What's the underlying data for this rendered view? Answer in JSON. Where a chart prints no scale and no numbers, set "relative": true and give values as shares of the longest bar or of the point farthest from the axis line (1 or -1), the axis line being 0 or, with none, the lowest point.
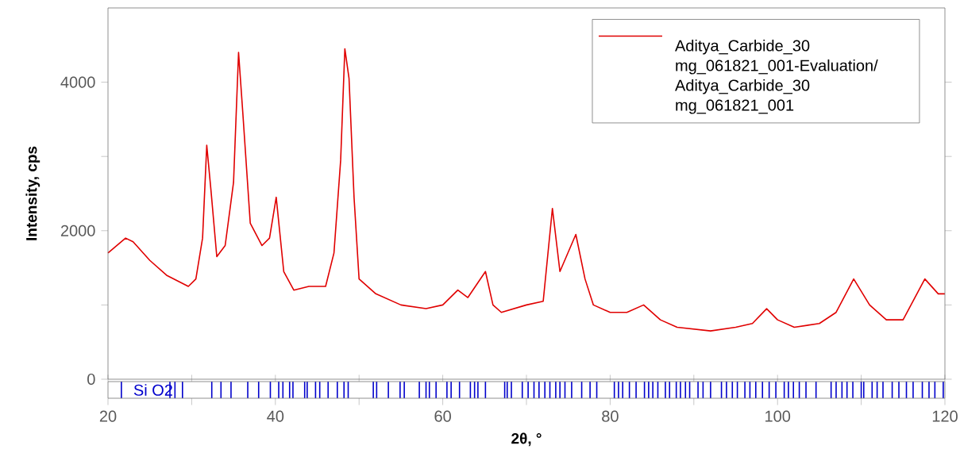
{
  "chart_data": [
    {
      "type": "line",
      "ylabel": "Intensity, cps",
      "legend": "top right",
      "marker": "none",
      "line_style": "solid",
      "grid": false,
      "tick_labels": "y",
      "x": [
        20,
        22.1,
        23,
        25,
        27,
        29.6,
        30.5,
        31.3,
        31.8,
        32.3,
        33,
        34,
        35,
        35.6,
        36.1,
        37,
        38.4,
        39.3,
        40.1,
        41,
        42.2,
        44,
        45,
        46,
        47,
        47.8,
        48.3,
        48.8,
        49.4,
        50,
        52,
        55,
        58,
        60,
        61.8,
        63,
        65.1,
        66,
        67,
        70,
        72,
        73.1,
        74,
        75.9,
        77,
        78,
        80,
        82,
        84,
        86,
        88,
        92,
        95,
        97,
        98.7,
        100,
        102,
        105,
        107,
        109.1,
        111,
        113,
        115,
        117.6,
        119.2,
        120
      ],
      "xlim": [
        20,
        120
      ],
      "ylim": [
        0,
        5000
      ],
      "yticks": [
        0,
        {
          "value": 1000,
          "label": null
        },
        2000,
        {
          "value": 3000,
          "label": null
        },
        4000
      ],
      "series": [
        {
          "name": "Aditya_Carbide_30 mg_061821_001-Evaluation/ Aditya_Carbide_30 mg_061821_001",
          "color": "#e00000",
          "values": [
            1700,
            1900,
            1850,
            1600,
            1400,
            1250,
            1350,
            1900,
            3150,
            2550,
            1650,
            1800,
            2650,
            4400,
            3600,
            2100,
            1800,
            1900,
            2450,
            1450,
            1200,
            1250,
            1250,
            1250,
            1700,
            2950,
            4450,
            4050,
            2450,
            1350,
            1150,
            1000,
            950,
            1000,
            1200,
            1100,
            1450,
            1000,
            900,
            1000,
            1050,
            2300,
            1450,
            1950,
            1350,
            1000,
            900,
            900,
            1000,
            800,
            700,
            650,
            700,
            750,
            950,
            800,
            700,
            750,
            900,
            1350,
            1000,
            800,
            800,
            1350,
            1150,
            1150
          ]
        }
      ]
    },
    {
      "type": "bar",
      "relative": true,
      "color": "#0000cc",
      "tick_labels": "x",
      "xlabel": "2θ, °",
      "annotations": [
        "Si O2"
      ],
      "xlim": [
        20,
        120
      ],
      "xticks": [
        20,
        {
          "value": 30,
          "label": null
        },
        40,
        {
          "value": 50,
          "label": null
        },
        60,
        {
          "value": 70,
          "label": null
        },
        80,
        {
          "value": 90,
          "label": null
        },
        100,
        {
          "value": 110,
          "label": null
        },
        120
      ],
      "x": [
        21.6,
        27.4,
        28.0,
        28.9,
        32.4,
        33.5,
        34.7,
        36.7,
        38.0,
        39.4,
        40.4,
        40.9,
        41.7,
        42.1,
        43.5,
        43.8,
        44.8,
        45.3,
        46.3,
        47.4,
        48.2,
        48.7,
        51.7,
        52.1,
        53.5,
        54.9,
        55.4,
        57.2,
        58.0,
        58.4,
        59.2,
        60.5,
        61.0,
        62.0,
        63.3,
        63.8,
        64.2,
        65.1,
        67.4,
        67.7,
        68.2,
        69.5,
        70.2,
        70.9,
        71.5,
        72.2,
        72.8,
        73.5,
        74.0,
        74.6,
        75.4,
        76.6,
        77.6,
        78.4,
        80.5,
        81.0,
        81.5,
        82.3,
        83.1,
        84.1,
        84.6,
        85.1,
        85.7,
        86.6,
        87.1,
        87.9,
        88.4,
        89.0,
        89.5,
        90.5,
        91.1,
        92.0,
        93.3,
        93.9,
        94.6,
        95.2,
        96.1,
        96.7,
        97.4,
        98.2,
        99.0,
        99.8,
        100.8,
        101.3,
        101.9,
        102.6,
        103.4,
        104.6,
        106.4,
        107.0,
        107.7,
        108.3,
        109.0,
        110.0,
        110.3,
        111.3,
        111.9,
        112.6,
        113.7,
        114.5,
        115.4,
        116.2,
        117.3,
        118.1,
        118.8,
        119.8
      ],
      "values": [
        1,
        1,
        1,
        1,
        1,
        1,
        1,
        1,
        1,
        1,
        1,
        1,
        1,
        1,
        1,
        1,
        1,
        1,
        1,
        1,
        1,
        1,
        1,
        1,
        1,
        1,
        1,
        1,
        1,
        1,
        1,
        1,
        1,
        1,
        1,
        1,
        1,
        1,
        1,
        1,
        1,
        1,
        1,
        1,
        1,
        1,
        1,
        1,
        1,
        1,
        1,
        1,
        1,
        1,
        1,
        1,
        1,
        1,
        1,
        1,
        1,
        1,
        1,
        1,
        1,
        1,
        1,
        1,
        1,
        1,
        1,
        1,
        1,
        1,
        1,
        1,
        1,
        1,
        1,
        1,
        1,
        1,
        1,
        1,
        1,
        1,
        1,
        1,
        1,
        1,
        1,
        1,
        1,
        1,
        1,
        1,
        1,
        1,
        1,
        1,
        1,
        1,
        1,
        1,
        1,
        1
      ]
    }
  ]
}
